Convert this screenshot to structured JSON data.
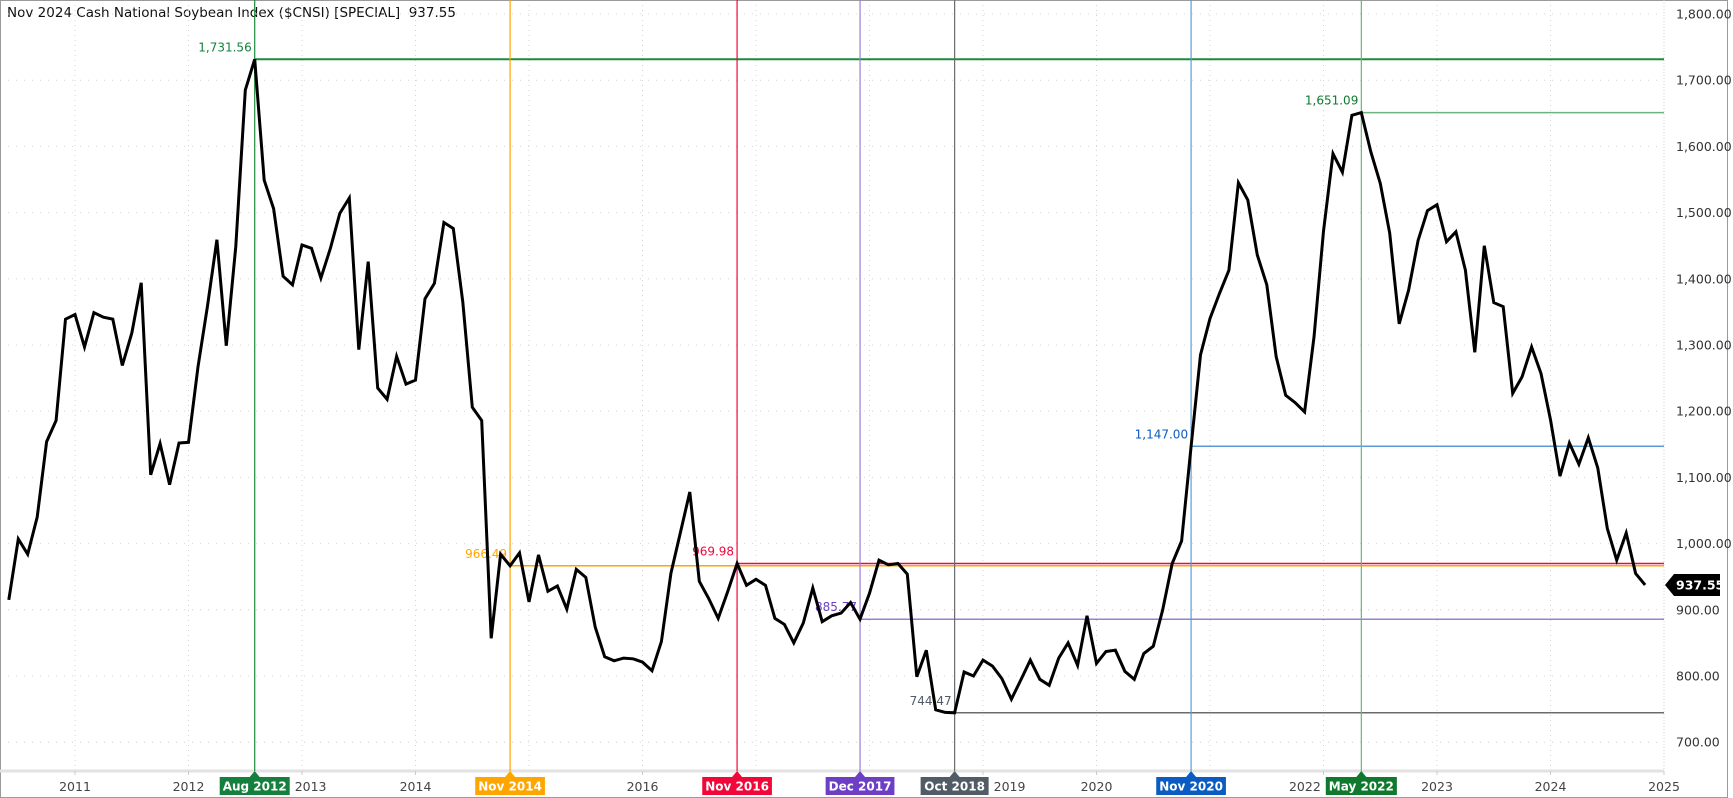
{
  "chart_data": {
    "type": "line",
    "title": "Nov 2024 Cash National Soybean Index ($CNSI) [SPECIAL]",
    "last_value_label": "937.55",
    "frequency": "monthly",
    "start": "2010-06",
    "end": "2024-11",
    "series": [
      {
        "name": "Cash National Soybean Index ($CNSI)",
        "color": "#000000",
        "values": [
          915,
          1007,
          984,
          1040,
          1154,
          1186,
          1339,
          1346,
          1297,
          1349,
          1342,
          1339,
          1269,
          1318,
          1394,
          1104,
          1151,
          1089,
          1152,
          1153,
          1267,
          1358,
          1459,
          1299,
          1449,
          1685,
          1731.56,
          1549,
          1506,
          1404,
          1391,
          1451,
          1446,
          1401,
          1446,
          1499,
          1522,
          1293,
          1426,
          1235,
          1218,
          1283,
          1241,
          1247,
          1370,
          1393,
          1485,
          1476,
          1365,
          1206,
          1186,
          857,
          984,
          966.49,
          986,
          912,
          983,
          928,
          936,
          901,
          961,
          949,
          874,
          829,
          823,
          827,
          826,
          821,
          808,
          852,
          955,
          1016,
          1078,
          943,
          917,
          887,
          927,
          969.98,
          937,
          946,
          937,
          887,
          878,
          850,
          880,
          933,
          882,
          891,
          895,
          911,
          885.77,
          925,
          975,
          968,
          970,
          954,
          799,
          839,
          749,
          745,
          744.47,
          806,
          800,
          824,
          815,
          796,
          765,
          794,
          824,
          795,
          786,
          827,
          850,
          816,
          891,
          819,
          837,
          839,
          807,
          795,
          834,
          845,
          900,
          970,
          1004,
          1147,
          1285,
          1340,
          1378,
          1413,
          1545,
          1519,
          1436,
          1391,
          1282,
          1224,
          1213,
          1199,
          1312,
          1472,
          1589,
          1561,
          1647,
          1651.09,
          1592,
          1544,
          1469,
          1332,
          1383,
          1458,
          1503,
          1512,
          1456,
          1471,
          1413,
          1289,
          1450,
          1364,
          1358,
          1227,
          1252,
          1297,
          1257,
          1187,
          1102,
          1152,
          1120,
          1160,
          1114,
          1023,
          975,
          1016,
          955,
          937.55
        ]
      }
    ],
    "ylim": [
      650,
      1820
    ],
    "y_ticks": [
      "700.00",
      "800.00",
      "900.00",
      "1,000.00",
      "1,100.00",
      "1,200.00",
      "1,300.00",
      "1,400.00",
      "1,500.00",
      "1,600.00",
      "1,700.00",
      "1,800.00"
    ],
    "y_tick_values": [
      700,
      800,
      900,
      1000,
      1100,
      1200,
      1300,
      1400,
      1500,
      1600,
      1700,
      1800
    ],
    "x_ticks": [
      "2011",
      "2012",
      "2013",
      "2014",
      "2016",
      "2019",
      "2020",
      "2022",
      "2023",
      "2024",
      "2025"
    ],
    "x_tick_values": [
      2011,
      2012,
      2013,
      2014,
      2016,
      2019,
      2020,
      2022,
      2023,
      2024,
      2025
    ],
    "grid": true,
    "y_axis_side": "right",
    "annotations": [
      {
        "date_label": "Aug 2012",
        "t": 2012.5833,
        "value": 1731.56,
        "value_label": "1,731.56",
        "color": "#15803d",
        "line_color": "#1e8a3c"
      },
      {
        "date_label": "Nov 2014",
        "t": 2014.8333,
        "value": 966.49,
        "value_label": "966.49",
        "color": "#ffa500",
        "line_color": "#ffa500"
      },
      {
        "date_label": "Nov 2016",
        "t": 2016.8333,
        "value": 969.98,
        "value_label": "969.98",
        "color": "#f0083a",
        "line_color": "#f0083a"
      },
      {
        "date_label": "Dec 2017",
        "t": 2017.9167,
        "value": 885.77,
        "value_label": "885.77",
        "color": "#6c3fc4",
        "line_color": "#9b7fd6"
      },
      {
        "date_label": "Oct 2018",
        "t": 2018.75,
        "value": 744.47,
        "value_label": "744.47",
        "color": "#515c66",
        "line_color": "#6b6b6b"
      },
      {
        "date_label": "Nov 2020",
        "t": 2020.8333,
        "value": 1147.0,
        "value_label": "1,147.00",
        "color": "#0a5cc2",
        "line_color": "#5b9bd5"
      },
      {
        "date_label": "May 2022",
        "t": 2022.3333,
        "value": 1651.09,
        "value_label": "1,651.09",
        "color": "#0f7a2e",
        "line_color": "#6db37f"
      }
    ]
  }
}
